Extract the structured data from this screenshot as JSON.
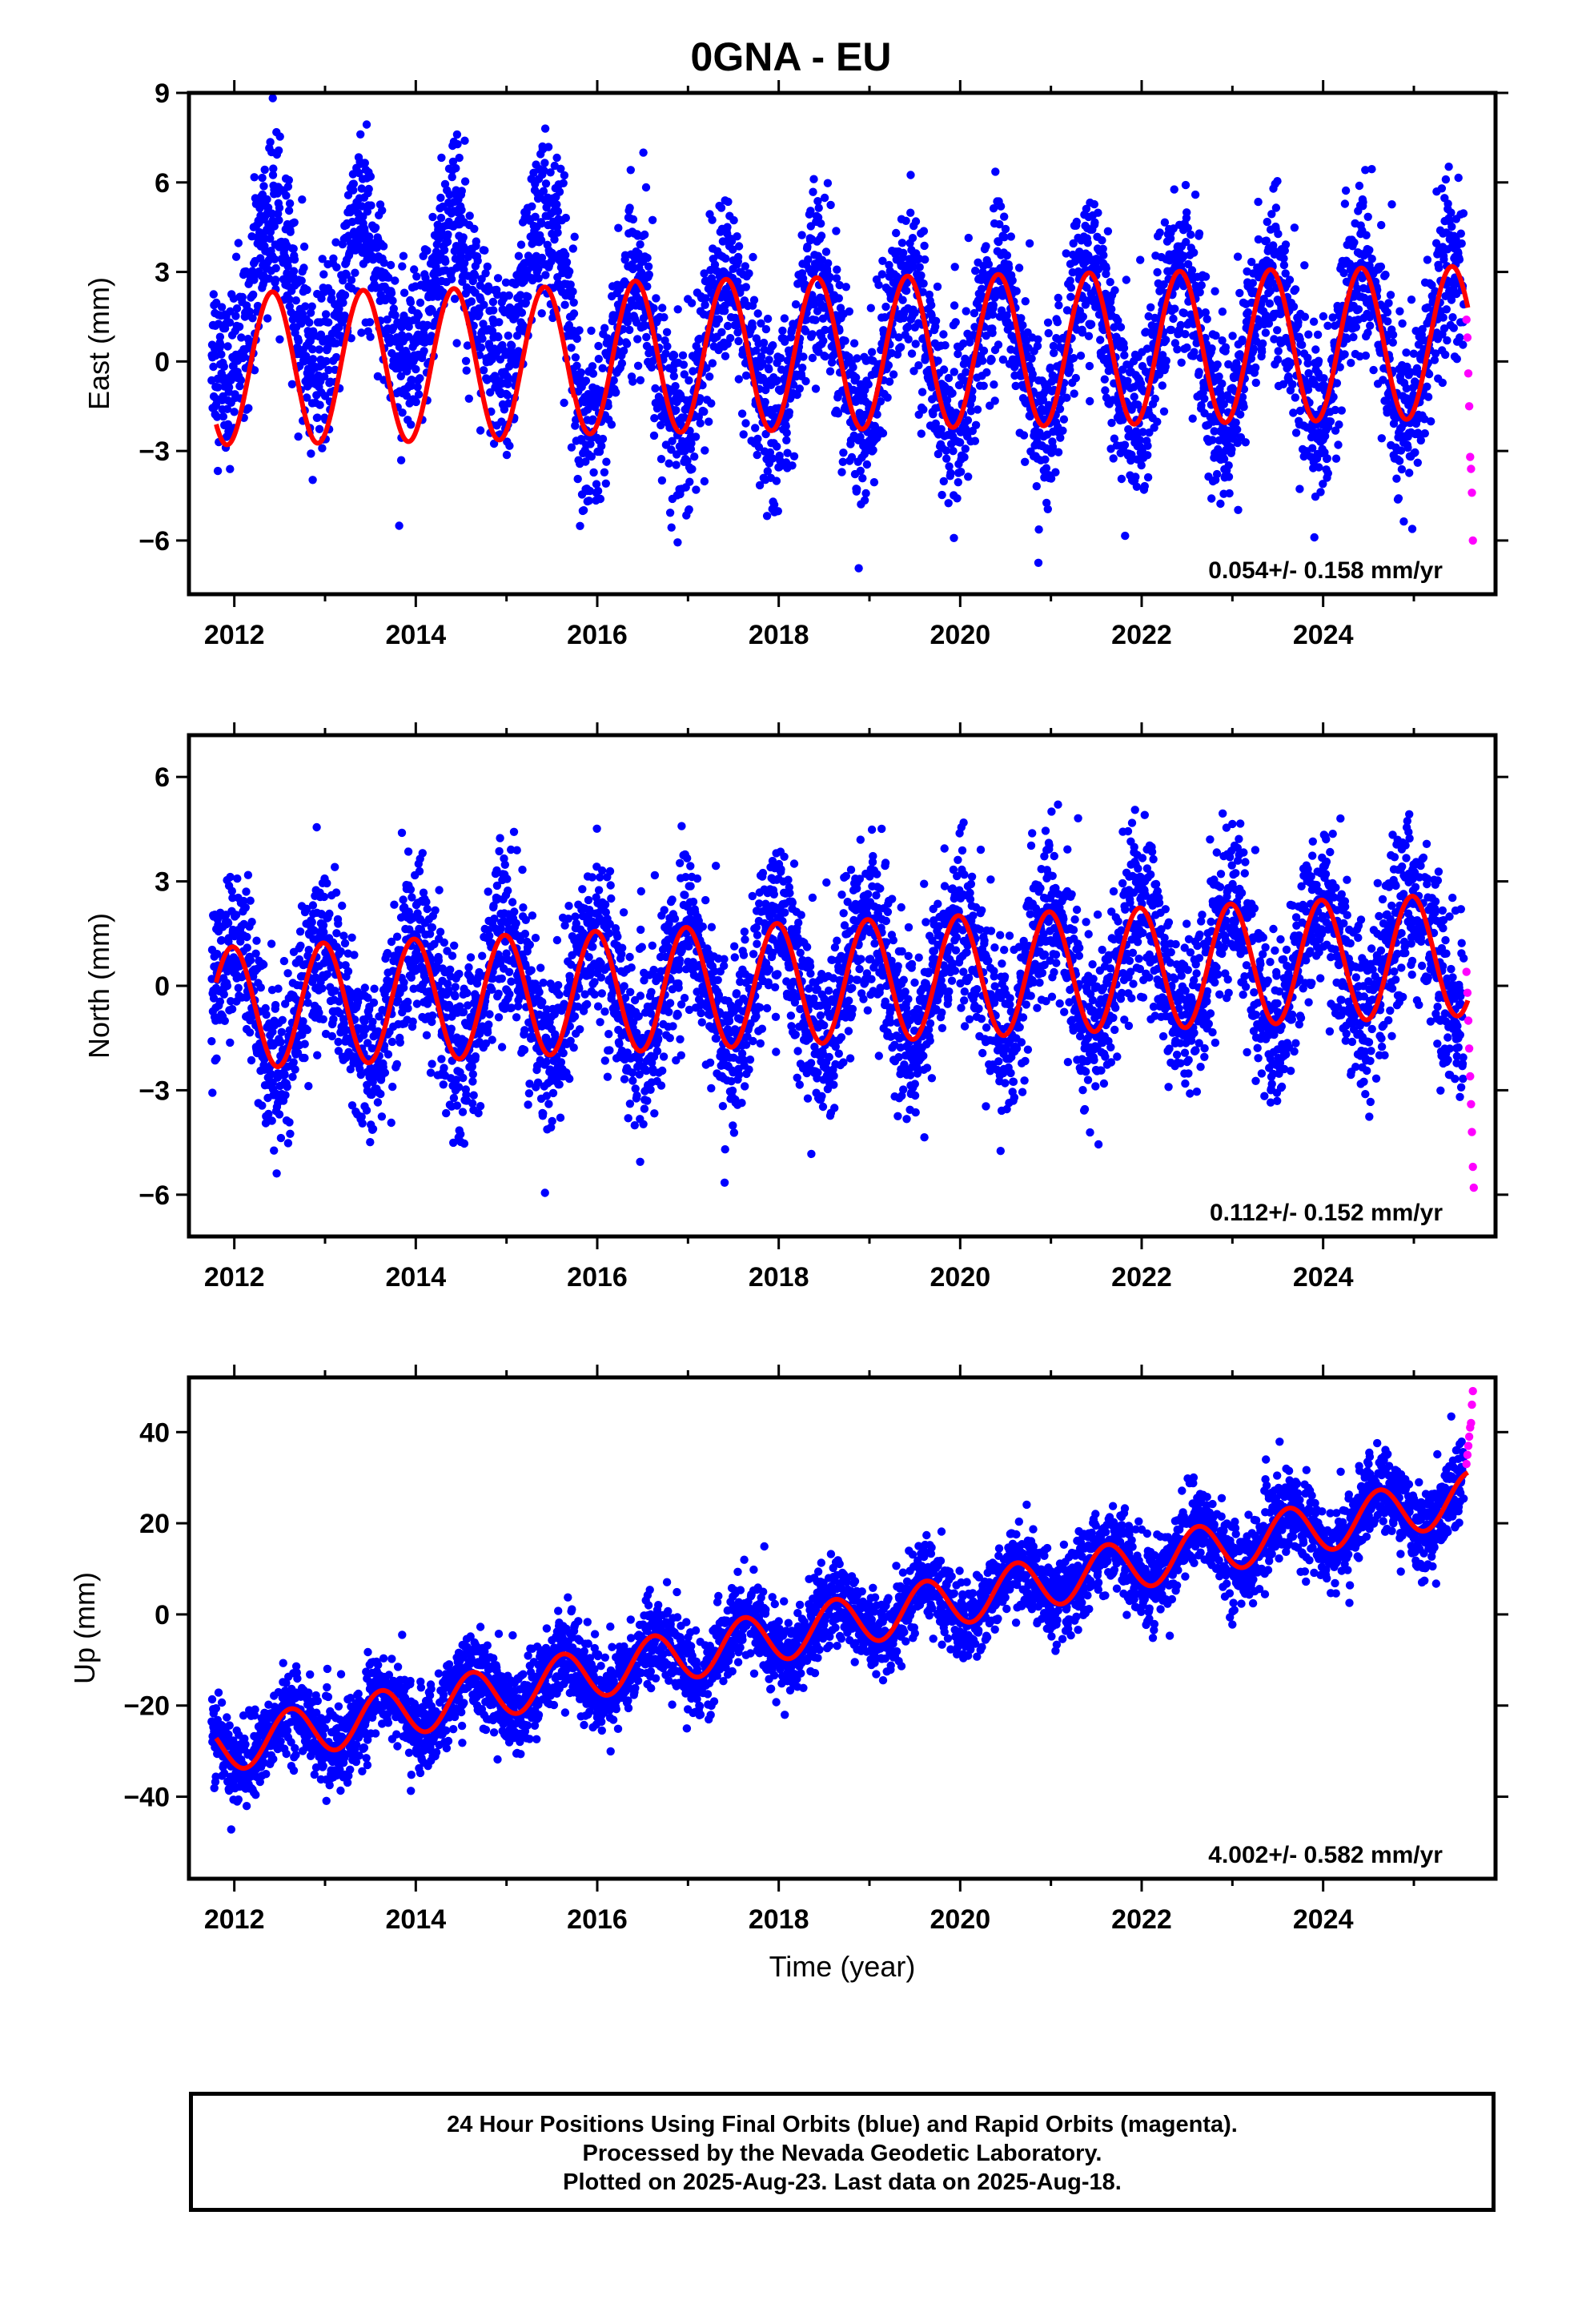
{
  "page_title": "0GNA - EU",
  "colors": {
    "final_orbits": "#0000ff",
    "rapid_orbits": "#ff00ff",
    "model_fit": "#ff0000",
    "axis": "#000000"
  },
  "footer": {
    "line1": "24 Hour Positions Using Final Orbits (blue) and Rapid Orbits (magenta).",
    "line2": "Processed by the Nevada Geodetic Laboratory.",
    "line3": "Plotted on 2025-Aug-23. Last data on 2025-Aug-18."
  },
  "chart_data": [
    {
      "type": "scatter",
      "ylabel": "East (mm)",
      "xlabel": "",
      "xlim": [
        2011.5,
        2025.9
      ],
      "ylim": [
        -7.8,
        9
      ],
      "xticks": [
        2012,
        2014,
        2016,
        2018,
        2020,
        2022,
        2024
      ],
      "yticks": [
        9,
        6,
        3,
        0,
        -3,
        -6
      ],
      "ytick_labels": [
        "9",
        "6",
        "3",
        "0",
        "−3",
        "−6"
      ],
      "annotation": "0.054+/- 0.158 mm/yr",
      "model": {
        "segments": [
          {
            "start": 2011.8,
            "end": 2015.75,
            "offset": -0.25,
            "trend": 0.054,
            "amplitude": 2.55,
            "peak_phase": 0.42,
            "amp_growth": 0.0
          },
          {
            "start": 2015.75,
            "end": 2025.6,
            "offset": -0.1,
            "trend": 0.054,
            "amplitude": 2.55,
            "peak_phase": 0.42,
            "amp_growth": 0.0
          }
        ]
      },
      "final_orbits": {
        "start": 2011.75,
        "end": 2025.55,
        "noise_sd": 1.4,
        "pre_2015_75_shift": 2.3
      },
      "rapid_orbits": {
        "x": [
          2025.58,
          2025.59,
          2025.6,
          2025.61,
          2025.62,
          2025.63,
          2025.64,
          2025.65
        ],
        "y": [
          1.4,
          0.8,
          -0.4,
          -1.5,
          -3.2,
          -3.6,
          -4.4,
          -6.0
        ]
      }
    },
    {
      "type": "scatter",
      "ylabel": "North (mm)",
      "xlabel": "",
      "xlim": [
        2011.5,
        2025.9
      ],
      "ylim": [
        -7.2,
        7.2
      ],
      "xticks": [
        2012,
        2014,
        2016,
        2018,
        2020,
        2022,
        2024
      ],
      "yticks": [
        6,
        3,
        0,
        -3,
        -6
      ],
      "ytick_labels": [
        "6",
        "3",
        "0",
        "−3",
        "−6"
      ],
      "annotation": "0.112+/- 0.152 mm/yr",
      "model": {
        "segments": [
          {
            "start": 2011.8,
            "end": 2025.6,
            "offset": -0.65,
            "trend": 0.112,
            "amplitude": 1.75,
            "peak_phase": 0.98,
            "amp_growth": 0.0
          }
        ]
      },
      "final_orbits": {
        "start": 2011.75,
        "end": 2025.55,
        "noise_sd": 1.2,
        "pre_2015_75_shift": 0
      },
      "rapid_orbits": {
        "x": [
          2025.58,
          2025.59,
          2025.6,
          2025.61,
          2025.62,
          2025.63,
          2025.64,
          2025.65,
          2025.66
        ],
        "y": [
          0.4,
          -0.2,
          -1.0,
          -1.8,
          -2.6,
          -3.4,
          -4.2,
          -5.2,
          -5.8
        ]
      }
    },
    {
      "type": "scatter",
      "ylabel": "Up (mm)",
      "xlabel": "Time (year)",
      "xlim": [
        2011.5,
        2025.9
      ],
      "ylim": [
        -58,
        52
      ],
      "xticks": [
        2012,
        2014,
        2016,
        2018,
        2020,
        2022,
        2024
      ],
      "yticks": [
        40,
        20,
        0,
        -20,
        -40
      ],
      "ytick_labels": [
        "40",
        "20",
        "0",
        "−20",
        "−40"
      ],
      "annotation": "4.002+/- 0.582 mm/yr",
      "model": {
        "segments": [
          {
            "start": 2011.8,
            "end": 2025.6,
            "offset": -29.5,
            "trend": 4.002,
            "amplitude": 5.5,
            "peak_phase": 0.62,
            "amp_growth": 0.0
          }
        ]
      },
      "final_orbits": {
        "start": 2011.75,
        "end": 2025.55,
        "noise_sd": 4.5,
        "pre_2015_75_shift": 0
      },
      "rapid_orbits": {
        "x": [
          2025.58,
          2025.59,
          2025.6,
          2025.61,
          2025.62,
          2025.63,
          2025.64,
          2025.65
        ],
        "y": [
          33,
          35,
          37,
          39,
          41,
          42,
          46,
          49
        ]
      }
    }
  ]
}
